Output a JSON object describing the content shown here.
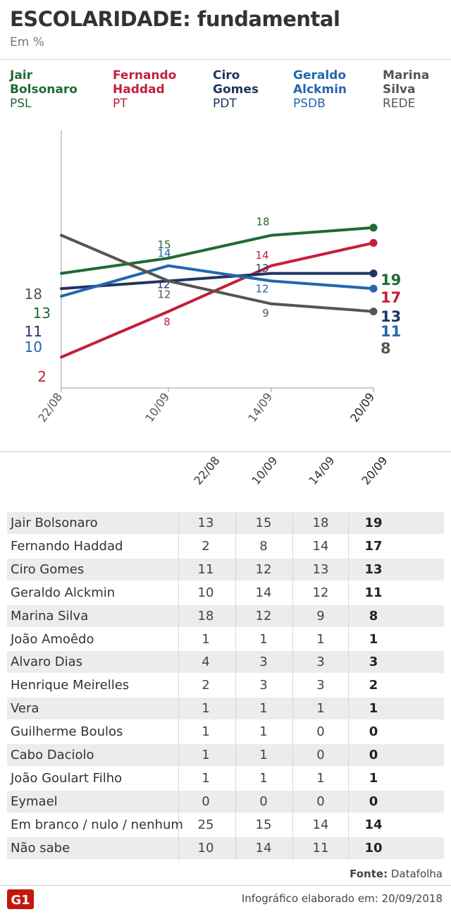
{
  "header": {
    "title": "ESCOLARIDADE: fundamental",
    "subtitle": "Em %"
  },
  "legend": [
    {
      "name_line1": "Jair",
      "name_line2": "Bolsonaro",
      "party": "PSL",
      "color": "#1e6b34"
    },
    {
      "name_line1": "Fernando",
      "name_line2": "Haddad",
      "party": "PT",
      "color": "#c41e3a"
    },
    {
      "name_line1": "Ciro",
      "name_line2": "Gomes",
      "party": "PDT",
      "color": "#1f3563"
    },
    {
      "name_line1": "Geraldo",
      "name_line2": "Alckmin",
      "party": "PSDB",
      "color": "#2267ae"
    },
    {
      "name_line1": "Marina",
      "name_line2": "Silva",
      "party": "REDE",
      "color": "#555555"
    }
  ],
  "chart_data": {
    "type": "line",
    "x": [
      "22/08",
      "10/09",
      "14/09",
      "20/09"
    ],
    "series": [
      {
        "name": "Jair Bolsonaro",
        "values": [
          13,
          15,
          18,
          19
        ],
        "color": "#1e6b34"
      },
      {
        "name": "Fernando Haddad",
        "values": [
          2,
          8,
          14,
          17
        ],
        "color": "#c41e3a"
      },
      {
        "name": "Ciro Gomes",
        "values": [
          11,
          12,
          13,
          13
        ],
        "color": "#1f3563"
      },
      {
        "name": "Geraldo Alckmin",
        "values": [
          10,
          14,
          12,
          11
        ],
        "color": "#2267ae"
      },
      {
        "name": "Marina Silva",
        "values": [
          18,
          12,
          9,
          8
        ],
        "color": "#555555"
      }
    ],
    "ylim": [
      0,
      20
    ],
    "grid": false
  },
  "table": {
    "columns": [
      "22/08",
      "10/09",
      "14/09",
      "20/09"
    ],
    "rows": [
      {
        "name": "Jair Bolsonaro",
        "values": [
          "13",
          "15",
          "18",
          "19"
        ]
      },
      {
        "name": "Fernando Haddad",
        "values": [
          "2",
          "8",
          "14",
          "17"
        ]
      },
      {
        "name": "Ciro Gomes",
        "values": [
          "11",
          "12",
          "13",
          "13"
        ]
      },
      {
        "name": "Geraldo Alckmin",
        "values": [
          "10",
          "14",
          "12",
          "11"
        ]
      },
      {
        "name": "Marina Silva",
        "values": [
          "18",
          "12",
          "9",
          "8"
        ]
      },
      {
        "name": "João Amoêdo",
        "values": [
          "1",
          "1",
          "1",
          "1"
        ]
      },
      {
        "name": "Alvaro Dias",
        "values": [
          "4",
          "3",
          "3",
          "3"
        ]
      },
      {
        "name": "Henrique Meirelles",
        "values": [
          "2",
          "3",
          "3",
          "2"
        ]
      },
      {
        "name": "Vera",
        "values": [
          "1",
          "1",
          "1",
          "1"
        ]
      },
      {
        "name": "Guilherme Boulos",
        "values": [
          "1",
          "1",
          "0",
          "0"
        ]
      },
      {
        "name": "Cabo Daciolo",
        "values": [
          "1",
          "1",
          "0",
          "0"
        ]
      },
      {
        "name": "João Goulart Filho",
        "values": [
          "1",
          "1",
          "1",
          "1"
        ]
      },
      {
        "name": "Eymael",
        "values": [
          "0",
          "0",
          "0",
          "0"
        ]
      },
      {
        "name": "Em branco / nulo / nenhum",
        "values": [
          "25",
          "15",
          "14",
          "14"
        ]
      },
      {
        "name": "Não sabe",
        "values": [
          "10",
          "14",
          "11",
          "10"
        ]
      }
    ]
  },
  "footer": {
    "source_label": "Fonte:",
    "source_value": "Datafolha",
    "credit": "Infográfico elaborado em: 20/09/2018",
    "logo_text": "G1",
    "logo_color": "#c4170c"
  }
}
